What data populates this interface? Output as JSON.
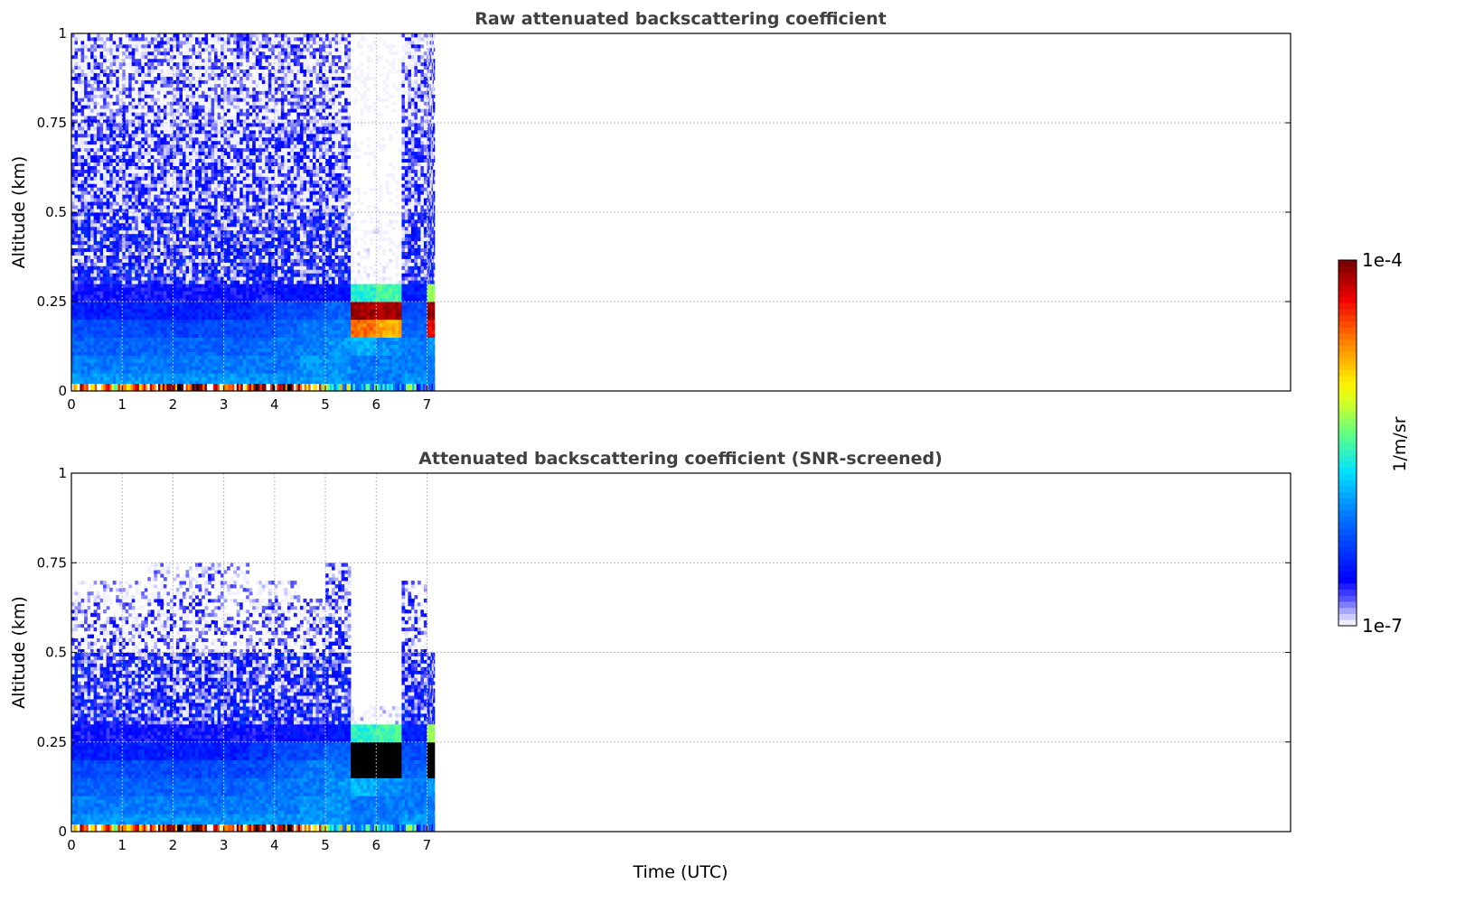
{
  "colorbar": {
    "label": "1/m/sr",
    "max_label": "1e-4",
    "min_label": "1e-7",
    "log_min": -7,
    "log_max": -4
  },
  "xlabel": "Time (UTC)",
  "chart_data": [
    {
      "type": "heatmap",
      "title": "Raw attenuated backscattering coefficient",
      "xlabel": "Time (UTC)",
      "ylabel": "Altitude (km)",
      "xlim": [
        0,
        24
      ],
      "ylim": [
        0,
        1
      ],
      "xticks": [
        "0",
        "1",
        "2",
        "3",
        "4",
        "5",
        "6",
        "7"
      ],
      "yticks": [
        "0",
        "0.25",
        "0.5",
        "0.75",
        "1"
      ],
      "grid": true,
      "value_units": "log10(1/m/sr)",
      "time_bin_start": [
        0,
        0.5,
        1,
        1.5,
        2,
        2.5,
        3,
        3.5,
        4,
        4.5,
        5,
        5.5,
        6,
        6.5,
        7
      ],
      "time_end": 7.15,
      "altitude_bin_km": 0.05,
      "surface_layer": [
        -4.5,
        -5.0,
        -4.8,
        -4.6,
        -4.3,
        -4.5,
        -4.7,
        -4.4,
        -4.3,
        -5.0,
        -5.5,
        -6.0,
        -6.0,
        -6.0,
        -6.0
      ],
      "values": [
        [
          -6.0,
          -6.0,
          -6.0,
          -6.0,
          -6.0,
          -6.0,
          -6.0,
          -6.0,
          -6.0,
          -6.0,
          -6.0,
          -6.1,
          -6.1,
          -6.0,
          -6.1
        ],
        [
          -6.1,
          -6.1,
          -6.1,
          -6.1,
          -6.1,
          -6.1,
          -6.1,
          -6.1,
          -6.1,
          -6.0,
          -6.0,
          -6.1,
          -6.1,
          -6.1,
          -6.1
        ],
        [
          -6.2,
          -6.2,
          -6.2,
          -6.2,
          -6.2,
          -6.2,
          -6.2,
          -6.15,
          -6.1,
          -6.1,
          -6.0,
          -5.9,
          -6.0,
          -6.1,
          -6.0
        ],
        [
          -6.3,
          -6.3,
          -6.3,
          -6.3,
          -6.35,
          -6.3,
          -6.3,
          -6.3,
          -6.2,
          -6.1,
          -6.1,
          -4.6,
          -4.8,
          -6.2,
          -4.3
        ],
        [
          -6.5,
          -6.5,
          -6.5,
          -6.5,
          -6.5,
          -6.5,
          -6.5,
          -6.4,
          -6.3,
          -6.3,
          -6.2,
          -4.1,
          -4.1,
          -6.3,
          -4.1
        ],
        [
          -6.65,
          -6.65,
          -6.65,
          -6.65,
          -6.65,
          -6.65,
          -6.65,
          -6.65,
          -6.6,
          -6.6,
          -6.55,
          -5.6,
          -5.5,
          -6.5,
          -5.3
        ],
        [
          -6.7,
          -6.7,
          -6.7,
          -6.7,
          -6.7,
          -6.7,
          -6.7,
          -6.7,
          -6.7,
          -6.7,
          -6.7,
          -7.3,
          -7.3,
          -6.7,
          -6.7
        ],
        [
          -6.75,
          -6.75,
          -6.75,
          -6.75,
          -6.75,
          -6.75,
          -6.75,
          -6.75,
          -6.75,
          -6.75,
          -6.75,
          -7.3,
          -7.3,
          -6.75,
          -6.75
        ],
        [
          -6.75,
          -6.75,
          -6.75,
          -6.75,
          -6.75,
          -6.75,
          -6.75,
          -6.75,
          -6.75,
          -6.75,
          -6.75,
          -7.3,
          -7.3,
          -6.75,
          -6.75
        ],
        [
          -6.75,
          -6.75,
          -6.75,
          -6.75,
          -6.75,
          -6.75,
          -6.75,
          -6.75,
          -6.75,
          -6.75,
          -6.75,
          -7.3,
          -7.3,
          -6.75,
          -6.75
        ],
        [
          -6.85,
          -6.85,
          -6.85,
          -6.85,
          -6.85,
          -6.85,
          -6.85,
          -6.85,
          -6.85,
          -6.85,
          -6.85,
          -7.4,
          -7.4,
          -6.85,
          -6.85
        ],
        [
          -6.85,
          -6.85,
          -6.85,
          -6.85,
          -6.85,
          -6.85,
          -6.85,
          -6.85,
          -6.85,
          -6.85,
          -6.85,
          -7.4,
          -7.4,
          -6.85,
          -6.85
        ],
        [
          -6.85,
          -6.85,
          -6.85,
          -6.85,
          -6.85,
          -6.85,
          -6.85,
          -6.85,
          -6.85,
          -6.85,
          -6.85,
          -7.4,
          -7.4,
          -6.85,
          -6.85
        ],
        [
          -6.85,
          -6.85,
          -6.85,
          -6.85,
          -6.85,
          -6.85,
          -6.85,
          -6.85,
          -6.85,
          -6.85,
          -6.85,
          -7.4,
          -7.4,
          -6.85,
          -6.85
        ],
        [
          -6.85,
          -6.85,
          -6.85,
          -6.85,
          -6.85,
          -6.85,
          -6.85,
          -6.85,
          -6.85,
          -6.85,
          -6.85,
          -7.4,
          -7.4,
          -6.85,
          -6.85
        ],
        [
          -6.95,
          -6.95,
          -6.95,
          -6.95,
          -6.95,
          -6.95,
          -6.95,
          -6.95,
          -6.95,
          -6.95,
          -6.95,
          -7.4,
          -7.4,
          -6.95,
          -6.95
        ],
        [
          -6.95,
          -6.95,
          -6.95,
          -6.95,
          -6.95,
          -6.95,
          -6.95,
          -6.95,
          -6.95,
          -6.95,
          -6.95,
          -7.4,
          -7.4,
          -6.95,
          -6.95
        ],
        [
          -6.95,
          -6.95,
          -6.95,
          -6.95,
          -6.95,
          -6.95,
          -6.95,
          -6.95,
          -6.95,
          -6.95,
          -6.95,
          -7.4,
          -7.4,
          -6.95,
          -6.95
        ],
        [
          -6.95,
          -6.95,
          -6.95,
          -6.95,
          -6.95,
          -6.95,
          -6.95,
          -6.95,
          -6.95,
          -6.95,
          -6.95,
          -7.4,
          -7.4,
          -6.95,
          -6.95
        ],
        [
          -6.95,
          -6.95,
          -6.95,
          -6.95,
          -6.95,
          -6.95,
          -6.95,
          -6.95,
          -6.95,
          -6.95,
          -6.95,
          -7.4,
          -7.4,
          -6.95,
          -6.95
        ]
      ]
    },
    {
      "type": "heatmap",
      "title": "Attenuated backscattering coefficient (SNR-screened)",
      "xlabel": "Time (UTC)",
      "ylabel": "Altitude (km)",
      "xlim": [
        0,
        24
      ],
      "ylim": [
        0,
        1
      ],
      "xticks": [
        "0",
        "1",
        "2",
        "3",
        "4",
        "5",
        "6",
        "7"
      ],
      "yticks": [
        "0",
        "0.25",
        "0.5",
        "0.75",
        "1"
      ],
      "grid": true,
      "value_units": "log10(1/m/sr)",
      "time_bin_start": [
        0,
        0.5,
        1,
        1.5,
        2,
        2.5,
        3,
        3.5,
        4,
        4.5,
        5,
        5.5,
        6,
        6.5,
        7
      ],
      "time_end": 7.15,
      "altitude_bin_km": 0.05,
      "surface_layer": [
        -4.5,
        -5.0,
        -4.8,
        -4.6,
        -4.3,
        -4.5,
        -4.7,
        -4.4,
        -4.3,
        -5.0,
        -5.5,
        -6.0,
        -6.0,
        -6.0,
        -6.0
      ],
      "values": [
        [
          -6.0,
          -6.0,
          -6.0,
          -6.0,
          -6.0,
          -6.0,
          -6.0,
          -6.0,
          -6.0,
          -6.0,
          -6.0,
          -6.1,
          -6.1,
          -6.0,
          -6.1
        ],
        [
          -6.1,
          -6.1,
          -6.1,
          -6.1,
          -6.1,
          -6.1,
          -6.1,
          -6.1,
          -6.1,
          -6.0,
          -6.0,
          -6.1,
          -6.1,
          -6.1,
          -6.1
        ],
        [
          -6.2,
          -6.2,
          -6.2,
          -6.2,
          -6.2,
          -6.2,
          -6.2,
          -6.15,
          -6.1,
          -6.1,
          -6.0,
          -5.9,
          -6.0,
          -6.1,
          -6.0
        ],
        [
          -6.3,
          -6.3,
          -6.3,
          -6.3,
          -6.35,
          -6.3,
          -6.3,
          -6.3,
          -6.2,
          -6.1,
          -6.1,
          -3.5,
          -3.5,
          -6.2,
          -3.5
        ],
        [
          -6.5,
          -6.5,
          -6.5,
          -6.5,
          -6.5,
          -6.5,
          -6.5,
          -6.4,
          -6.3,
          -6.3,
          -6.2,
          -3.5,
          -3.5,
          -6.3,
          -3.5
        ],
        [
          -6.65,
          -6.65,
          -6.65,
          -6.65,
          -6.65,
          -6.65,
          -6.65,
          -6.65,
          -6.6,
          -6.6,
          -6.55,
          -5.6,
          -5.5,
          -6.5,
          -5.3
        ],
        [
          -6.7,
          -6.7,
          -6.7,
          -6.7,
          -6.7,
          -6.7,
          -6.7,
          -6.7,
          -6.7,
          -6.7,
          -6.7,
          -7.2,
          -7.2,
          -6.7,
          -6.7
        ],
        [
          -6.75,
          -6.75,
          -6.75,
          -6.75,
          -6.75,
          -6.75,
          -6.75,
          -6.75,
          -6.75,
          -6.75,
          -6.75,
          null,
          null,
          -6.75,
          -6.75
        ],
        [
          -6.75,
          -6.75,
          -6.75,
          -6.75,
          -6.75,
          -6.75,
          -6.75,
          -6.75,
          -6.75,
          -6.75,
          -6.75,
          null,
          null,
          -6.75,
          -6.75
        ],
        [
          -6.75,
          -6.75,
          -6.75,
          -6.75,
          -6.75,
          -6.75,
          -6.75,
          -6.75,
          -6.75,
          -6.75,
          -6.75,
          null,
          null,
          -6.8,
          -6.75
        ],
        [
          -6.95,
          -6.95,
          -6.95,
          -6.95,
          -6.95,
          -6.95,
          -6.95,
          -6.95,
          -6.95,
          -6.95,
          -6.8,
          null,
          null,
          -6.85,
          null
        ],
        [
          -6.95,
          -6.95,
          -6.95,
          -6.95,
          -6.95,
          -6.95,
          -6.95,
          -6.95,
          -6.95,
          -6.95,
          -6.8,
          null,
          null,
          -6.85,
          null
        ],
        [
          -7.0,
          -7.0,
          -7.0,
          -6.95,
          -6.95,
          -6.95,
          -7.0,
          -7.0,
          -7.0,
          -7.0,
          -6.8,
          null,
          null,
          -6.9,
          null
        ],
        [
          -7.1,
          -7.1,
          -7.1,
          -7.1,
          -7.05,
          -7.0,
          -7.1,
          -7.1,
          -7.1,
          null,
          -6.9,
          null,
          null,
          -6.95,
          null
        ],
        [
          null,
          null,
          null,
          -7.1,
          -7.05,
          -6.95,
          -7.1,
          null,
          null,
          null,
          -6.95,
          null,
          null,
          null,
          null
        ],
        [
          null,
          null,
          null,
          null,
          null,
          null,
          null,
          null,
          null,
          null,
          null,
          null,
          null,
          null,
          null
        ],
        [
          null,
          null,
          null,
          null,
          null,
          null,
          null,
          null,
          null,
          null,
          null,
          null,
          null,
          null,
          null
        ],
        [
          null,
          null,
          null,
          null,
          null,
          null,
          null,
          null,
          null,
          null,
          null,
          null,
          null,
          null,
          null
        ],
        [
          null,
          null,
          null,
          null,
          null,
          null,
          null,
          null,
          null,
          null,
          null,
          null,
          null,
          null,
          null
        ],
        [
          null,
          null,
          null,
          null,
          null,
          null,
          null,
          null,
          null,
          null,
          null,
          null,
          null,
          null,
          null
        ]
      ]
    }
  ]
}
